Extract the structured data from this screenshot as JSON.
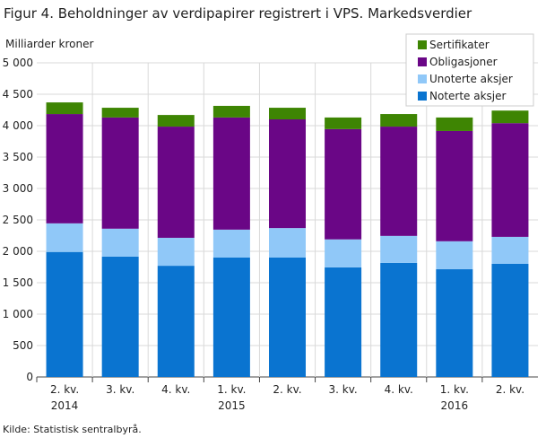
{
  "chart_data": {
    "type": "bar",
    "stacked": true,
    "title": "Figur 4. Beholdninger av verdipapirer registrert i VPS. Markedsverdier",
    "ylabel": "Milliarder  kroner",
    "xlabel": "",
    "ylim": [
      0,
      5000
    ],
    "yticks": [
      "0",
      "500",
      "1 000",
      "1 500",
      "2 000",
      "2 500",
      "3 000",
      "3 500",
      "4 000",
      "4 500",
      "5 000"
    ],
    "categories": [
      [
        "2. kv.",
        "2014"
      ],
      [
        "3. kv.",
        ""
      ],
      [
        "4. kv.",
        ""
      ],
      [
        "1. kv.",
        "2015"
      ],
      [
        "2. kv.",
        ""
      ],
      [
        "3. kv.",
        ""
      ],
      [
        "4. kv.",
        ""
      ],
      [
        "1. kv.",
        "2016"
      ],
      [
        "2. kv.",
        ""
      ]
    ],
    "series": [
      {
        "name": "Noterte aksjer",
        "color": "#0a74d0",
        "values": [
          1990,
          1915,
          1770,
          1900,
          1900,
          1745,
          1815,
          1715,
          1800
        ]
      },
      {
        "name": "Unoterte aksjer",
        "color": "#90c8f8",
        "values": [
          455,
          445,
          445,
          445,
          470,
          445,
          430,
          445,
          430
        ]
      },
      {
        "name": "Obligasjoner",
        "color": "#6a0686",
        "values": [
          1740,
          1770,
          1770,
          1785,
          1730,
          1755,
          1740,
          1755,
          1810
        ]
      },
      {
        "name": "Sertifikater",
        "color": "#3e8503",
        "values": [
          185,
          155,
          185,
          185,
          185,
          185,
          200,
          215,
          200
        ]
      }
    ],
    "grid": true,
    "legend": "top-right",
    "source": "Kilde: Statistisk sentralbyrå."
  }
}
